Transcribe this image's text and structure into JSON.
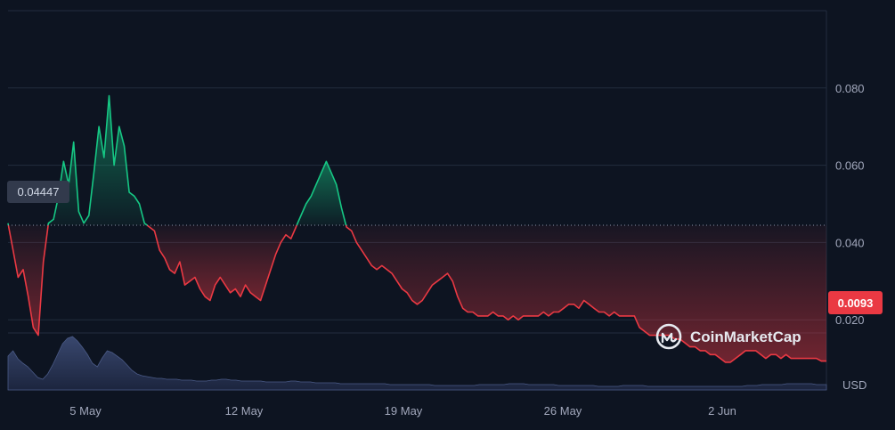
{
  "chart_data": {
    "type": "area",
    "currency_label": "USD",
    "brand_label": "CoinMarketCap",
    "reference_value": 0.04447,
    "reference_label": "0.04447",
    "current_value": 0.0093,
    "current_label": "0.0093",
    "ylim": [
      0,
      0.1
    ],
    "y_ticks": [
      {
        "value": 0.08,
        "label": "0.080"
      },
      {
        "value": 0.06,
        "label": "0.060"
      },
      {
        "value": 0.04,
        "label": "0.040"
      },
      {
        "value": 0.02,
        "label": "0.020"
      }
    ],
    "x_ticks": [
      "5 May",
      "12 May",
      "19 May",
      "26 May",
      "2 Jun"
    ],
    "colors": {
      "up": "#16c784",
      "down": "#ea3943",
      "volume": "#34405f",
      "grid": "#222c3e",
      "background": "#0d1421"
    },
    "series": [
      {
        "values": [
          0.045,
          0.038,
          0.031,
          0.033,
          0.026,
          0.018,
          0.016,
          0.035,
          0.045,
          0.046,
          0.052,
          0.061,
          0.055,
          0.066,
          0.048,
          0.045,
          0.047,
          0.058,
          0.07,
          0.062,
          0.078,
          0.06,
          0.07,
          0.065,
          0.053,
          0.052,
          0.05,
          0.045,
          0.044,
          0.043,
          0.038,
          0.036,
          0.033,
          0.032,
          0.035,
          0.029,
          0.03,
          0.031,
          0.028,
          0.026,
          0.025,
          0.029,
          0.031,
          0.029,
          0.027,
          0.028,
          0.026,
          0.029,
          0.027,
          0.026,
          0.025,
          0.029,
          0.033,
          0.037,
          0.04,
          0.042,
          0.041,
          0.044,
          0.047,
          0.05,
          0.052,
          0.055,
          0.058,
          0.061,
          0.058,
          0.055,
          0.049,
          0.044,
          0.043,
          0.04,
          0.038,
          0.036,
          0.034,
          0.033,
          0.034,
          0.033,
          0.032,
          0.03,
          0.028,
          0.027,
          0.025,
          0.024,
          0.025,
          0.027,
          0.029,
          0.03,
          0.031,
          0.032,
          0.03,
          0.026,
          0.023,
          0.022,
          0.022,
          0.021,
          0.021,
          0.021,
          0.022,
          0.021,
          0.021,
          0.02,
          0.021,
          0.02,
          0.021,
          0.021,
          0.021,
          0.021,
          0.022,
          0.021,
          0.022,
          0.022,
          0.023,
          0.024,
          0.024,
          0.023,
          0.025,
          0.024,
          0.023,
          0.022,
          0.022,
          0.021,
          0.022,
          0.021,
          0.021,
          0.021,
          0.021,
          0.018,
          0.017,
          0.016,
          0.016,
          0.016,
          0.016,
          0.016,
          0.015,
          0.015,
          0.014,
          0.013,
          0.013,
          0.012,
          0.012,
          0.011,
          0.011,
          0.01,
          0.009,
          0.009,
          0.01,
          0.011,
          0.012,
          0.012,
          0.012,
          0.011,
          0.01,
          0.011,
          0.011,
          0.01,
          0.011,
          0.01,
          0.01,
          0.01,
          0.01,
          0.01,
          0.01,
          0.0093,
          0.0093
        ]
      }
    ]
  }
}
